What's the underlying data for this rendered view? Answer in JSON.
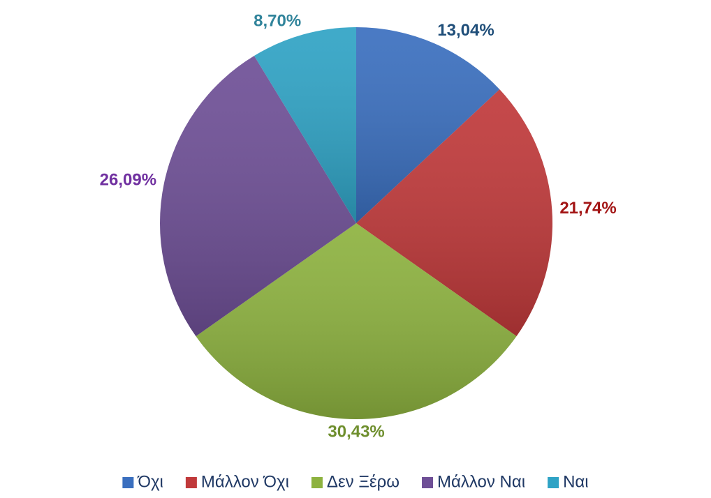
{
  "chart_data": {
    "type": "pie",
    "categories": [
      "Όχι",
      "Μάλλον Όχι",
      "Δεν Ξέρω",
      "Μάλλον Ναι",
      "Ναι"
    ],
    "values": [
      13.04,
      21.74,
      30.43,
      26.09,
      8.7
    ],
    "value_labels": [
      "13,04%",
      "21,74%",
      "30,43%",
      "26,09%",
      "8,70%"
    ],
    "colors": [
      "#3a6fbf",
      "#c0393a",
      "#8db23f",
      "#6e4f96",
      "#2fa3c5"
    ],
    "label_colors": [
      "#1f4e79",
      "#a31515",
      "#6f8f2e",
      "#7030a0",
      "#31849b"
    ],
    "legend": "bottom"
  }
}
